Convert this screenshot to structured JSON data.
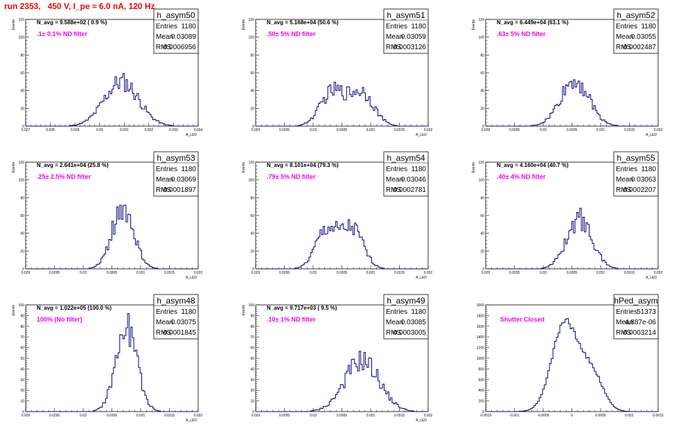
{
  "page_title": "run 2353,   450 V, I_pe ≈ 6.0 nA, 120 Hz",
  "colors": {
    "title": "#ee0000",
    "histogram": "#000080",
    "annotation": "#ee00ee",
    "axis": "#000000"
  },
  "chart_data": [
    {
      "type": "histogram",
      "name": "h_asym50",
      "navg": "N_avg = 9.588e+02 ( 0.9 %)",
      "filter": ".1± 0.1% ND filter",
      "stats": [
        [
          "Entries",
          "1180"
        ],
        [
          "Mean",
          "0.03089"
        ],
        [
          "RMS",
          "0.0006956"
        ]
      ],
      "xlabel": "A_LED",
      "ylabel": "Events",
      "xlim": [
        0.027,
        0.034
      ],
      "ylim": [
        0,
        120
      ],
      "xticks": [
        0.027,
        0.028,
        0.029,
        0.03,
        0.031,
        0.032,
        0.033,
        0.034
      ],
      "xtick_labels": [
        "0.027",
        "0.028",
        "0.029",
        "0.03",
        "0.031",
        "0.032",
        "0.033",
        "0.034"
      ],
      "yticks": [
        0,
        20,
        40,
        60,
        80,
        100,
        120
      ],
      "mean": 0.03089,
      "sigma": 0.0006956,
      "peak": 50,
      "shape": "gauss"
    },
    {
      "type": "histogram",
      "name": "h_asym51",
      "navg": "N_avg = 5.168e+04 (50.6 %)",
      "filter": ".50± 5% ND filter",
      "stats": [
        [
          "Entries",
          "1180"
        ],
        [
          "Mean",
          "0.03059"
        ],
        [
          "RMS",
          "0.0003126"
        ]
      ],
      "xlabel": "A_LED",
      "ylabel": "Events",
      "xlim": [
        0.029,
        0.032
      ],
      "ylim": [
        0,
        120
      ],
      "xticks": [
        0.029,
        0.0295,
        0.03,
        0.0305,
        0.031,
        0.0315,
        0.032
      ],
      "xtick_labels": [
        "0.029",
        "0.0295",
        "0.03",
        "0.0305",
        "0.031",
        "0.0315",
        "0.032"
      ],
      "yticks": [
        0,
        20,
        40,
        60,
        80,
        100,
        120
      ],
      "mean": 0.03059,
      "sigma": 0.0003126,
      "peak": 40,
      "shape": "double"
    },
    {
      "type": "histogram",
      "name": "h_asym52",
      "navg": "N_avg = 6.449e+04 (63.1 %)",
      "filter": ".63± 5% ND filter",
      "stats": [
        [
          "Entries",
          "1180"
        ],
        [
          "Mean",
          "0.03055"
        ],
        [
          "RMS",
          "0.0002487"
        ]
      ],
      "xlabel": "A_LED",
      "ylabel": "Events",
      "xlim": [
        0.029,
        0.032
      ],
      "ylim": [
        0,
        120
      ],
      "xticks": [
        0.029,
        0.0295,
        0.03,
        0.0305,
        0.031,
        0.0315,
        0.032
      ],
      "xtick_labels": [
        "0.029",
        "0.0295",
        "0.03",
        "0.0305",
        "0.031",
        "0.0315",
        "0.032"
      ],
      "yticks": [
        0,
        20,
        40,
        60,
        80,
        100,
        120
      ],
      "mean": 0.03055,
      "sigma": 0.0002487,
      "peak": 52,
      "shape": "gauss"
    },
    {
      "type": "histogram",
      "name": "h_asym53",
      "navg": "N_avg = 2.641e+04 (25.8 %)",
      "filter": ".25± 2.5% ND filter",
      "stats": [
        [
          "Entries",
          "1180"
        ],
        [
          "Mean",
          "0.03069"
        ],
        [
          "RMS",
          "0.0001897"
        ]
      ],
      "xlabel": "A_LED",
      "ylabel": "Events",
      "xlim": [
        0.029,
        0.032
      ],
      "ylim": [
        0,
        120
      ],
      "xticks": [
        0.029,
        0.0295,
        0.03,
        0.0305,
        0.031,
        0.0315,
        0.032
      ],
      "xtick_labels": [
        "0.029",
        "0.0295",
        "0.03",
        "0.0305",
        "0.031",
        "0.0315",
        "0.032"
      ],
      "yticks": [
        0,
        20,
        40,
        60,
        80,
        100,
        120
      ],
      "mean": 0.03069,
      "sigma": 0.0001897,
      "peak": 68,
      "shape": "gauss"
    },
    {
      "type": "histogram",
      "name": "h_asym54",
      "navg": "N_avg = 8.101e+04 (79.3 %)",
      "filter": ".79± 5% ND filter",
      "stats": [
        [
          "Entries",
          "1180"
        ],
        [
          "Mean",
          "0.03046"
        ],
        [
          "RMS",
          "0.0002781"
        ]
      ],
      "xlabel": "A_LED",
      "ylabel": "Events",
      "xlim": [
        0.029,
        0.032
      ],
      "ylim": [
        0,
        120
      ],
      "xticks": [
        0.029,
        0.0295,
        0.03,
        0.0305,
        0.031,
        0.0315,
        0.032
      ],
      "xtick_labels": [
        "0.029",
        "0.0295",
        "0.03",
        "0.0305",
        "0.031",
        "0.0315",
        "0.032"
      ],
      "yticks": [
        0,
        20,
        40,
        60,
        80,
        100,
        120
      ],
      "mean": 0.03046,
      "sigma": 0.0002781,
      "peak": 46,
      "shape": "double"
    },
    {
      "type": "histogram",
      "name": "h_asym55",
      "navg": "N_avg = 4.160e+04 (40.7 %)",
      "filter": ".40± 4% ND filter",
      "stats": [
        [
          "Entries",
          "1180"
        ],
        [
          "Mean",
          "0.03063"
        ],
        [
          "RMS",
          "0.0002207"
        ]
      ],
      "xlabel": "A_LED",
      "ylabel": "Events",
      "xlim": [
        0.029,
        0.032
      ],
      "ylim": [
        0,
        120
      ],
      "xticks": [
        0.029,
        0.0295,
        0.03,
        0.0305,
        0.031,
        0.0315,
        0.032
      ],
      "xtick_labels": [
        "0.029",
        "0.0295",
        "0.03",
        "0.0305",
        "0.031",
        "0.0315",
        "0.032"
      ],
      "yticks": [
        0,
        20,
        40,
        60,
        80,
        100,
        120
      ],
      "mean": 0.03063,
      "sigma": 0.0002207,
      "peak": 56,
      "shape": "gauss"
    },
    {
      "type": "histogram",
      "name": "h_asym48",
      "navg": "N_avg = 1.022e+05 (100.0 %)",
      "filter": "100% (No filter)",
      "stats": [
        [
          "Entries",
          "1180"
        ],
        [
          "Mean",
          "0.03075"
        ],
        [
          "RMS",
          "0.0001845"
        ]
      ],
      "xlabel": "A_LED",
      "ylabel": "Events",
      "xlim": [
        0.029,
        0.032
      ],
      "ylim": [
        0,
        100
      ],
      "xticks": [
        0.029,
        0.0295,
        0.03,
        0.0305,
        0.031,
        0.0315,
        0.032
      ],
      "xtick_labels": [
        "0.029",
        "0.0295",
        "0.03",
        "0.0305",
        "0.031",
        "0.0315",
        "0.032"
      ],
      "yticks": [
        0,
        10,
        20,
        30,
        40,
        50,
        60,
        70,
        80,
        90,
        100
      ],
      "mean": 0.03075,
      "sigma": 0.0001845,
      "peak": 78,
      "shape": "gauss"
    },
    {
      "type": "histogram",
      "name": "h_asym49",
      "navg": "N_avg = 9.717e+03 ( 9.5 %)",
      "filter": ".10± 1% ND filter",
      "stats": [
        [
          "Entries",
          "1180"
        ],
        [
          "Mean",
          "0.03085"
        ],
        [
          "RMS",
          "0.0003005"
        ]
      ],
      "xlabel": "A_LED",
      "ylabel": "Events",
      "xlim": [
        0.029,
        0.032
      ],
      "ylim": [
        0,
        100
      ],
      "xticks": [
        0.029,
        0.0295,
        0.03,
        0.0305,
        0.031,
        0.0315,
        0.032
      ],
      "xtick_labels": [
        "0.029",
        "0.0295",
        "0.03",
        "0.0305",
        "0.031",
        "0.0315",
        "0.032"
      ],
      "yticks": [
        0,
        10,
        20,
        30,
        40,
        50,
        60,
        70,
        80,
        90,
        100
      ],
      "mean": 0.03085,
      "sigma": 0.0003005,
      "peak": 48,
      "shape": "gauss"
    },
    {
      "type": "histogram",
      "name": "hPed_asym",
      "navg": "",
      "filter": "Shutter Closed",
      "stats": [
        [
          "Entries",
          "51373"
        ],
        [
          "Mean",
          "4.887e-06"
        ],
        [
          "RMS",
          "0.0003214"
        ]
      ],
      "xlabel": "",
      "ylabel": "",
      "xlim": [
        -0.0015,
        0.0015
      ],
      "ylim": [
        0,
        2000
      ],
      "xticks": [
        -0.0015,
        -0.001,
        -0.0005,
        0,
        0.0005,
        0.001,
        0.0015
      ],
      "xtick_labels": [
        "-0.0015",
        "-0.001",
        "-0.0005",
        "0",
        "0.0005",
        "0.001",
        "0.0015"
      ],
      "yticks": [
        0,
        200,
        400,
        600,
        800,
        1000,
        1200,
        1400,
        1600,
        1800,
        2000
      ],
      "mean": 0.0,
      "sigma": 0.0003214,
      "peak": 1930,
      "shape": "ped"
    }
  ]
}
